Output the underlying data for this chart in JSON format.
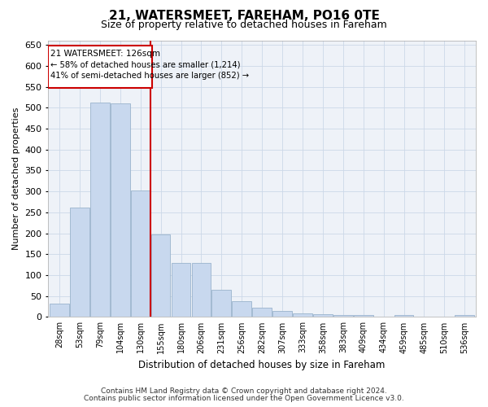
{
  "title": "21, WATERSMEET, FAREHAM, PO16 0TE",
  "subtitle": "Size of property relative to detached houses in Fareham",
  "xlabel": "Distribution of detached houses by size in Fareham",
  "ylabel": "Number of detached properties",
  "bar_color": "#c8d8ee",
  "bar_edge_color": "#9ab4cc",
  "categories": [
    "28sqm",
    "53sqm",
    "79sqm",
    "104sqm",
    "130sqm",
    "155sqm",
    "180sqm",
    "206sqm",
    "231sqm",
    "256sqm",
    "282sqm",
    "307sqm",
    "333sqm",
    "358sqm",
    "383sqm",
    "409sqm",
    "434sqm",
    "459sqm",
    "485sqm",
    "510sqm",
    "536sqm"
  ],
  "values": [
    31,
    262,
    512,
    510,
    302,
    197,
    130,
    130,
    65,
    38,
    22,
    15,
    8,
    7,
    5,
    4,
    1,
    4,
    1,
    1,
    5
  ],
  "property_line_x": 4.5,
  "property_label": "21 WATERSMEET: 126sqm",
  "annotation_line1": "← 58% of detached houses are smaller (1,214)",
  "annotation_line2": "41% of semi-detached houses are larger (852) →",
  "ylim": [
    0,
    660
  ],
  "yticks": [
    0,
    50,
    100,
    150,
    200,
    250,
    300,
    350,
    400,
    450,
    500,
    550,
    600,
    650
  ],
  "vline_color": "#cc0000",
  "annotation_box_color": "#cc0000",
  "grid_color": "#ccd8e8",
  "bg_color": "#eef2f8",
  "footnote1": "Contains HM Land Registry data © Crown copyright and database right 2024.",
  "footnote2": "Contains public sector information licensed under the Open Government Licence v3.0."
}
